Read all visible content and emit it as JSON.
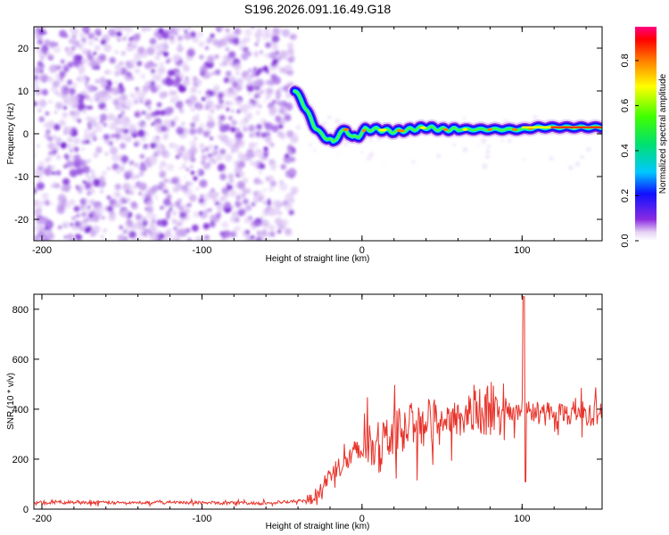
{
  "title": "S196.2026.091.16.49.G18",
  "chart_data": [
    {
      "type": "heatmap",
      "xlabel": "Height of straight line (km)",
      "ylabel": "Frequency (Hz)",
      "xlim": [
        -205,
        150
      ],
      "ylim": [
        -25,
        25
      ],
      "xticks": [
        -200,
        -100,
        0,
        100
      ],
      "yticks": [
        -20,
        -10,
        0,
        10,
        20
      ],
      "noise_region_x": [
        -205,
        -42
      ],
      "ridge": {
        "x": [
          -42,
          -38,
          -34,
          -30,
          -26,
          -22,
          -18,
          -14,
          -10,
          -6,
          -2,
          2,
          10,
          20,
          30,
          40,
          50,
          60,
          70,
          80,
          90,
          100,
          110,
          120,
          130,
          140,
          150
        ],
        "y": [
          10,
          8,
          5,
          2,
          0,
          -1,
          -2,
          0,
          1,
          -1,
          -0.5,
          1,
          1,
          0.5,
          1,
          1.5,
          1,
          1,
          1,
          1,
          1,
          1,
          1.5,
          1.5,
          1.5,
          1.5,
          1.5
        ]
      },
      "colorbar": {
        "label": "Normalized spectral amplitude",
        "ticks": [
          0.0,
          0.2,
          0.4,
          0.6,
          0.8
        ],
        "range": [
          0,
          0.95
        ]
      }
    },
    {
      "type": "line",
      "xlabel": "Height of straight line (km)",
      "ylabel": "SNR (10 * v/v)",
      "xlim": [
        -205,
        150
      ],
      "ylim": [
        0,
        860
      ],
      "xticks": [
        -200,
        -100,
        0,
        100
      ],
      "yticks": [
        0,
        200,
        400,
        600,
        800
      ],
      "color": "#e8332a",
      "series": [
        {
          "name": "SNR",
          "x": [
            -205,
            -180,
            -160,
            -140,
            -120,
            -100,
            -80,
            -60,
            -45,
            -32,
            -25,
            -20,
            -15,
            -10,
            -5,
            0,
            10,
            20,
            30,
            40,
            50,
            60,
            70,
            80,
            90,
            97,
            100,
            102,
            105,
            110,
            120,
            130,
            140,
            150
          ],
          "y": [
            25,
            28,
            26,
            25,
            27,
            26,
            25,
            24,
            28,
            40,
            80,
            140,
            170,
            190,
            220,
            230,
            270,
            300,
            330,
            350,
            360,
            370,
            375,
            380,
            385,
            390,
            400,
            390,
            380,
            385,
            390,
            385,
            380,
            385
          ]
        }
      ],
      "spike": {
        "x": 101,
        "peak": 850,
        "dip": 110
      }
    }
  ]
}
